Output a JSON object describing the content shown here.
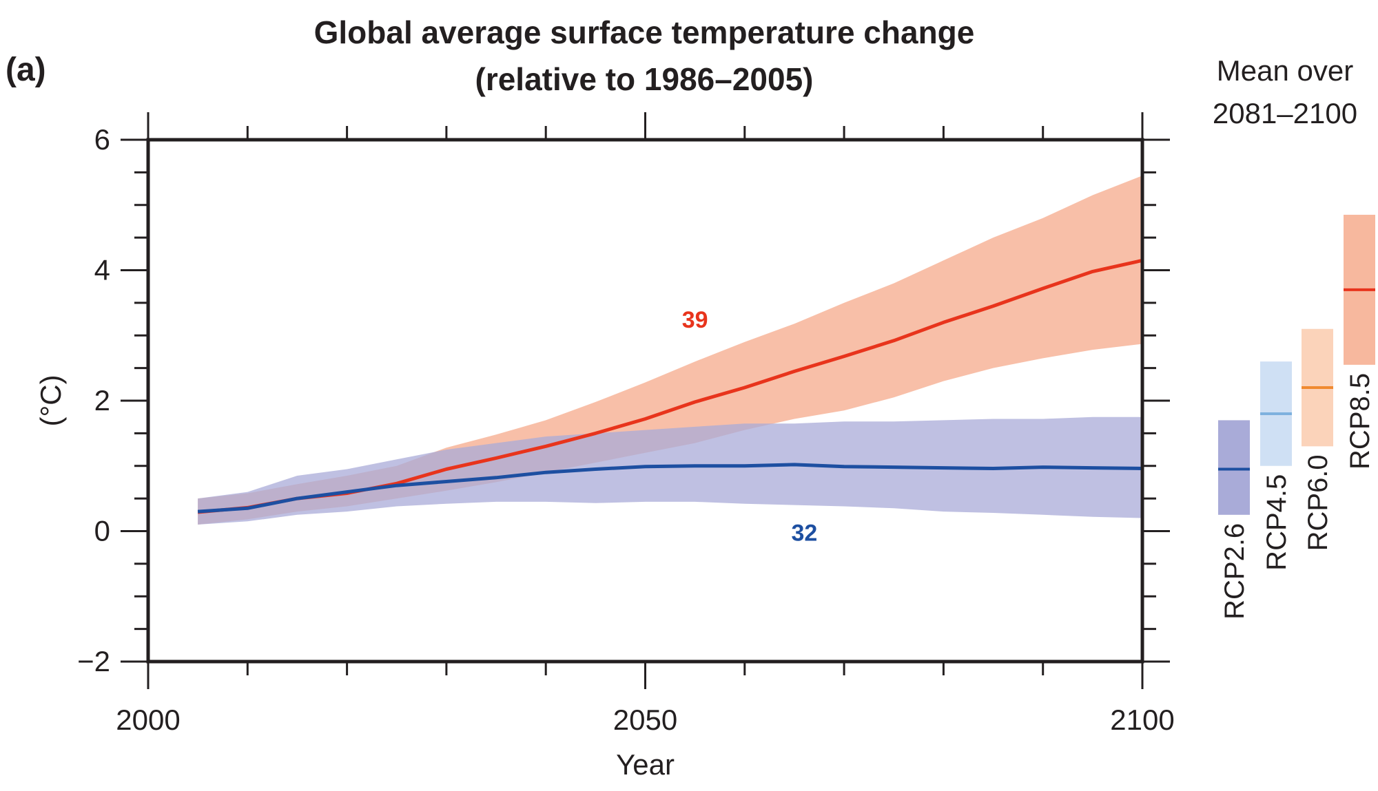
{
  "panel_label": "(a)",
  "title_line1": "Global average surface temperature change",
  "title_line2": "(relative to 1986–2005)",
  "side_title_line1": "Mean over",
  "side_title_line2": "2081–2100",
  "chart_data": {
    "type": "line",
    "title": "Global average surface temperature change (relative to 1986–2005)",
    "xlabel": "Year",
    "ylabel": "(°C)",
    "xlim": [
      2000,
      2100
    ],
    "ylim": [
      -2,
      6
    ],
    "xticks": [
      "2000",
      "2050",
      "2100"
    ],
    "yticks": [
      "−2",
      "0",
      "2",
      "4",
      "6"
    ],
    "grid": false,
    "series": [
      {
        "name": "RCP8.5",
        "color": "#e8341c",
        "band_color": "#f7b89e",
        "x": [
          2005,
          2010,
          2015,
          2020,
          2025,
          2030,
          2035,
          2040,
          2045,
          2050,
          2055,
          2060,
          2065,
          2070,
          2075,
          2080,
          2085,
          2090,
          2095,
          2100
        ],
        "mean": [
          0.29,
          0.36,
          0.5,
          0.58,
          0.73,
          0.95,
          1.12,
          1.3,
          1.5,
          1.72,
          1.98,
          2.2,
          2.45,
          2.68,
          2.92,
          3.2,
          3.45,
          3.72,
          3.98,
          4.15
        ],
        "lower": [
          0.1,
          0.18,
          0.3,
          0.38,
          0.5,
          0.62,
          0.75,
          0.9,
          1.05,
          1.2,
          1.35,
          1.55,
          1.72,
          1.85,
          2.05,
          2.3,
          2.5,
          2.65,
          2.78,
          2.87
        ],
        "upper": [
          0.5,
          0.58,
          0.72,
          0.85,
          1.0,
          1.28,
          1.48,
          1.7,
          1.98,
          2.28,
          2.6,
          2.9,
          3.18,
          3.5,
          3.8,
          4.15,
          4.5,
          4.8,
          5.15,
          5.45
        ],
        "model_count": "39",
        "model_count_position": [
          2055,
          3.12
        ]
      },
      {
        "name": "RCP2.6",
        "color": "#1d4fa1",
        "band_color": "#a9abd8",
        "x": [
          2005,
          2010,
          2015,
          2020,
          2025,
          2030,
          2035,
          2040,
          2045,
          2050,
          2055,
          2060,
          2065,
          2070,
          2075,
          2080,
          2085,
          2090,
          2095,
          2100
        ],
        "mean": [
          0.3,
          0.35,
          0.5,
          0.6,
          0.7,
          0.76,
          0.82,
          0.9,
          0.95,
          0.99,
          1.0,
          1.0,
          1.02,
          0.99,
          0.98,
          0.97,
          0.96,
          0.98,
          0.97,
          0.96
        ],
        "lower": [
          0.1,
          0.15,
          0.25,
          0.3,
          0.38,
          0.42,
          0.45,
          0.45,
          0.43,
          0.45,
          0.45,
          0.42,
          0.4,
          0.38,
          0.35,
          0.3,
          0.28,
          0.25,
          0.22,
          0.2
        ],
        "upper": [
          0.5,
          0.6,
          0.85,
          0.95,
          1.1,
          1.25,
          1.35,
          1.45,
          1.5,
          1.55,
          1.6,
          1.65,
          1.65,
          1.68,
          1.68,
          1.7,
          1.72,
          1.72,
          1.75,
          1.75
        ],
        "model_count": "32",
        "model_count_position": [
          2066,
          -0.15
        ]
      }
    ],
    "side_bars": [
      {
        "name": "RCP2.6",
        "lower": 0.25,
        "mean": 0.95,
        "upper": 1.7,
        "band_color": "#a9abd8",
        "mean_color": "#1d4fa1"
      },
      {
        "name": "RCP4.5",
        "lower": 1.0,
        "mean": 1.8,
        "upper": 2.6,
        "band_color": "#cfe0f4",
        "mean_color": "#7eb1de"
      },
      {
        "name": "RCP6.0",
        "lower": 1.3,
        "mean": 2.2,
        "upper": 3.1,
        "band_color": "#fbd3ba",
        "mean_color": "#f08a30"
      },
      {
        "name": "RCP8.5",
        "lower": 2.55,
        "mean": 3.7,
        "upper": 4.85,
        "band_color": "#f7b89e",
        "mean_color": "#e8341c"
      }
    ]
  }
}
